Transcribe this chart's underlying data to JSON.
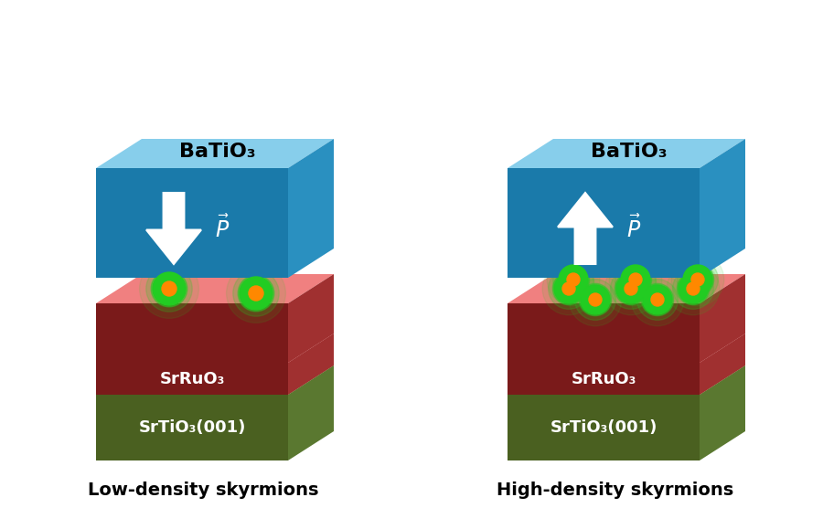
{
  "bg_color": "#ffffff",
  "title_left": "Low-density skyrmions",
  "title_right": "High-density skyrmions",
  "label_batio3": "BaTiO₃",
  "label_srruo3": "SrRuO₃",
  "label_srtio3": "SrTiO₃(001)",
  "colors": {
    "batio3_top": "#87ceeb",
    "batio3_front": "#1a7aaa",
    "batio3_side": "#2a90c0",
    "srruo3_top": "#f08080",
    "srruo3_front": "#7a1a1a",
    "srruo3_side": "#a03030",
    "srtio3_top": "#8fbc5a",
    "srtio3_front": "#4a6020",
    "srtio3_side": "#5a7830",
    "skyrmion_outer": "#22cc22",
    "skyrmion_inner": "#ff8800"
  }
}
